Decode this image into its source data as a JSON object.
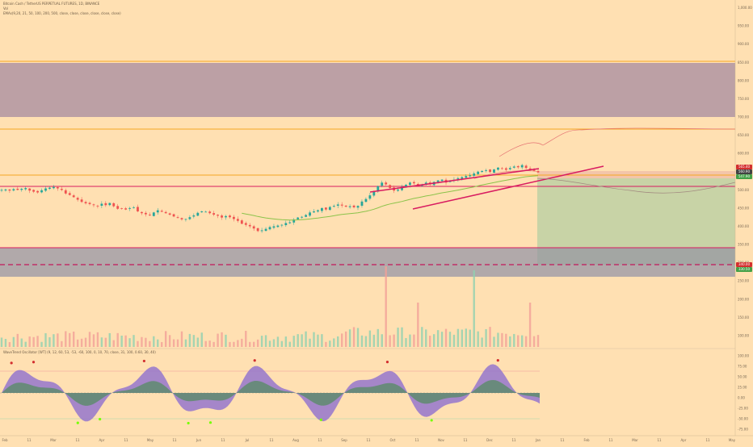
{
  "header": {
    "symbol_line": "Bitcoin Cash / TetherUS PERPETUAL FUTURES, 1D, BINANCE",
    "vol_line": "Vol",
    "ema_line": "EMAs(9,20, 21, 50, 100, 200, 500, close, close, close, close, close, close)",
    "osc_line": "WaveTrend Oscillator [WT] (9, 12, 60, 53, -53, -60, 100, 0, 10, 70, close, 31, 100, 0.60, 30, 40)"
  },
  "price_scale": {
    "labels": [
      "1,000.00",
      "950.00",
      "900.00",
      "850.00",
      "800.00",
      "750.00",
      "700.00",
      "650.00",
      "600.00",
      "550.00",
      "500.00",
      "450.00",
      "400.00",
      "350.00",
      "300.00",
      "250.00",
      "200.00",
      "150.00",
      "100.00"
    ],
    "tags": [
      {
        "text": "565.40",
        "color": "#d32f2f"
      },
      {
        "text": "560.90",
        "color": "#424242"
      },
      {
        "text": "547.90",
        "color": "#43a047"
      },
      {
        "text": "340.00",
        "color": "#d32f2f"
      },
      {
        "text": "330.50",
        "color": "#43a047"
      }
    ]
  },
  "osc_scale": {
    "labels": [
      "100.00",
      "75.00",
      "50.00",
      "25.00",
      "0.00",
      "-25.00",
      "-50.00",
      "-75.00"
    ]
  },
  "time_axis": {
    "labels": [
      "Feb",
      "11",
      "Mar",
      "11",
      "Apr",
      "11",
      "May",
      "11",
      "Jun",
      "11",
      "Jul",
      "11",
      "Aug",
      "11",
      "Sep",
      "11",
      "Oct",
      "11",
      "Nov",
      "11",
      "Dec",
      "11",
      "Jan",
      "11",
      "Feb",
      "11",
      "Mar",
      "11",
      "Apr",
      "11",
      "May"
    ]
  },
  "colors": {
    "background": "#ffe0b2",
    "zone": "#bca0a5",
    "target": "#c8d3a6",
    "stop": "#a8a3a8",
    "orange_line": "#f5a623",
    "red_line": "#d81b60",
    "ema_green": "#8bc34a",
    "ema_orange": "#ef6c00",
    "up": "#26a69a",
    "down": "#ef5350",
    "wt_fill": "#9575cd"
  },
  "chart_data": [
    {
      "type": "candlestick",
      "x_range": [
        "Feb",
        "May"
      ],
      "y_range": [
        80,
        1010
      ],
      "levels": [
        {
          "name": "resistance",
          "value": 820
        },
        {
          "name": "resistance-2",
          "value": 615
        },
        {
          "name": "resistance-3",
          "value": 567
        },
        {
          "name": "support",
          "value": 532
        },
        {
          "name": "support-2",
          "value": 392
        },
        {
          "name": "stop",
          "value": 340
        }
      ],
      "zones": [
        {
          "name": "supply",
          "from": 708,
          "to": 828
        },
        {
          "name": "demand",
          "from": 320,
          "to": 392
        }
      ],
      "close_path": [
        500,
        501,
        498,
        502,
        500,
        503,
        505,
        498,
        495,
        493,
        499,
        504,
        506,
        508,
        504,
        500,
        490,
        486,
        480,
        473,
        467,
        463,
        461,
        458,
        455,
        462,
        458,
        464,
        455,
        448,
        449,
        446,
        450,
        452,
        441,
        436,
        433,
        430,
        438,
        444,
        440,
        436,
        432,
        427,
        423,
        419,
        420,
        425,
        430,
        437,
        441,
        440,
        436,
        432,
        429,
        424,
        428,
        425,
        420,
        415,
        407,
        404,
        400,
        394,
        387,
        389,
        393,
        398,
        400,
        402,
        404,
        409,
        411,
        419,
        424,
        426,
        431,
        438,
        441,
        444,
        450,
        446,
        453,
        456,
        460,
        457,
        454,
        455,
        452,
        456,
        468,
        475,
        485,
        495,
        510,
        520,
        515,
        505,
        498,
        501,
        508,
        514,
        520,
        518,
        511,
        514,
        520,
        515,
        522,
        526,
        528,
        520,
        525,
        528,
        532,
        535,
        538,
        540,
        545,
        550,
        552,
        554,
        549,
        556,
        561,
        558,
        555,
        560,
        564,
        562,
        568,
        560,
        556,
        552,
        548
      ],
      "volume_spikes": [
        {
          "x_index": 96,
          "value": 1.0
        },
        {
          "x_index": 118,
          "value": 0.95
        },
        {
          "x_index": 132,
          "value": 0.55
        },
        {
          "x_index": 104,
          "value": 0.55
        }
      ]
    },
    {
      "type": "area",
      "name": "WaveTrend",
      "y_range": [
        -75,
        100
      ],
      "overbought": 60,
      "oversold": -60
    }
  ]
}
